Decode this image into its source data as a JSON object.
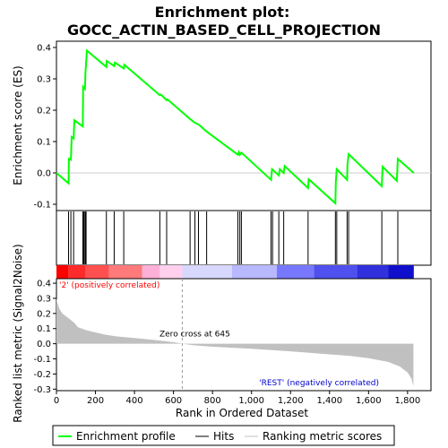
{
  "chart_data": {
    "type": "line",
    "title": "Enrichment plot:\nGOCC_ACTIN_BASED_CELL_PROJECTION",
    "title_lines": [
      "Enrichment plot:",
      "GOCC_ACTIN_BASED_CELL_PROJECTION"
    ],
    "n_genes": 1830,
    "colors": {
      "profile": "#00ff00",
      "hits": "#000000",
      "metric_fill": "#c0c0c0",
      "pos_label": "#ff0000",
      "neg_label": "#0000cc"
    },
    "es_panel": {
      "ylabel": "Enrichment score (ES)",
      "ylim": [
        -0.12,
        0.42
      ],
      "yticks": [
        -0.1,
        0.0,
        0.1,
        0.2,
        0.3,
        0.4
      ],
      "ytick_labels": [
        "-0.1",
        "0.0",
        "0.1",
        "0.2",
        "0.3",
        "0.4"
      ],
      "profile": [
        [
          0,
          0.0
        ],
        [
          62,
          -0.033
        ],
        [
          64,
          0.045
        ],
        [
          74,
          0.042
        ],
        [
          78,
          0.115
        ],
        [
          88,
          0.11
        ],
        [
          92,
          0.168
        ],
        [
          135,
          0.148
        ],
        [
          137,
          0.275
        ],
        [
          146,
          0.268
        ],
        [
          149,
          0.32
        ],
        [
          156,
          0.39
        ],
        [
          256,
          0.338
        ],
        [
          258,
          0.357
        ],
        [
          296,
          0.341
        ],
        [
          300,
          0.352
        ],
        [
          345,
          0.333
        ],
        [
          348,
          0.345
        ],
        [
          530,
          0.248
        ],
        [
          535,
          0.25
        ],
        [
          565,
          0.232
        ],
        [
          568,
          0.235
        ],
        [
          685,
          0.172
        ],
        [
          710,
          0.16
        ],
        [
          728,
          0.155
        ],
        [
          770,
          0.132
        ],
        [
          930,
          0.058
        ],
        [
          935,
          0.066
        ],
        [
          940,
          0.058
        ],
        [
          948,
          0.065
        ],
        [
          1100,
          -0.022
        ],
        [
          1105,
          0.012
        ],
        [
          1140,
          -0.008
        ],
        [
          1145,
          0.012
        ],
        [
          1165,
          0.0
        ],
        [
          1170,
          0.022
        ],
        [
          1290,
          -0.048
        ],
        [
          1293,
          -0.02
        ],
        [
          1430,
          -0.097
        ],
        [
          1432,
          -0.03
        ],
        [
          1437,
          0.012
        ],
        [
          1490,
          -0.022
        ],
        [
          1492,
          0.028
        ],
        [
          1498,
          0.06
        ],
        [
          1668,
          -0.042
        ],
        [
          1672,
          0.02
        ],
        [
          1745,
          -0.025
        ],
        [
          1750,
          0.045
        ],
        [
          1832,
          0.0
        ]
      ]
    },
    "hits": [
      62,
      74,
      88,
      135,
      140,
      146,
      149,
      152,
      256,
      296,
      345,
      530,
      565,
      685,
      710,
      728,
      770,
      930,
      940,
      948,
      1100,
      1108,
      1140,
      1165,
      1290,
      1430,
      1437,
      1490,
      1498,
      1668,
      1750
    ],
    "metric_panel": {
      "ylabel": "Ranked list metric (Signal2Noise)",
      "xlabel": "Rank in Ordered Dataset",
      "ylim": [
        -0.31,
        0.43
      ],
      "yticks": [
        -0.3,
        -0.2,
        -0.1,
        0.0,
        0.1,
        0.2,
        0.3,
        0.4
      ],
      "ytick_labels": [
        "-0.3",
        "-0.2",
        "-0.1",
        "0.0",
        "0.1",
        "0.2",
        "0.3",
        "0.4"
      ],
      "xlim": [
        0,
        1920
      ],
      "xticks": [
        0,
        200,
        400,
        600,
        800,
        1000,
        1200,
        1400,
        1600,
        1800
      ],
      "xtick_labels": [
        "0",
        "200",
        "400",
        "600",
        "800",
        "1,000",
        "1,200",
        "1,400",
        "1,600",
        "1,800"
      ],
      "metric": [
        [
          0,
          0.3
        ],
        [
          5,
          0.27
        ],
        [
          15,
          0.23
        ],
        [
          30,
          0.2
        ],
        [
          60,
          0.17
        ],
        [
          90,
          0.14
        ],
        [
          110,
          0.11
        ],
        [
          150,
          0.09
        ],
        [
          200,
          0.075
        ],
        [
          250,
          0.06
        ],
        [
          300,
          0.05
        ],
        [
          400,
          0.038
        ],
        [
          500,
          0.025
        ],
        [
          600,
          0.01
        ],
        [
          645,
          0.0
        ],
        [
          700,
          -0.01
        ],
        [
          800,
          -0.02
        ],
        [
          1000,
          -0.033
        ],
        [
          1200,
          -0.05
        ],
        [
          1400,
          -0.07
        ],
        [
          1500,
          -0.08
        ],
        [
          1600,
          -0.095
        ],
        [
          1700,
          -0.12
        ],
        [
          1760,
          -0.15
        ],
        [
          1800,
          -0.19
        ],
        [
          1820,
          -0.23
        ],
        [
          1830,
          -0.28
        ]
      ],
      "zero_cross": 645,
      "zero_cross_label": "Zero cross at 645",
      "pos_label": "'2' (positively correlated)",
      "neg_label": "'REST' (negatively correlated)"
    },
    "legend": {
      "placement": "bottom",
      "items": [
        {
          "label": "Enrichment profile",
          "color": "#00ff00"
        },
        {
          "label": "Hits",
          "color": "#000000"
        },
        {
          "label": "Ranking metric scores",
          "color": "#c0c0c0"
        }
      ]
    },
    "heatmap_bands": [
      {
        "start": 0,
        "end": 60,
        "color": "#ff0000"
      },
      {
        "start": 60,
        "end": 150,
        "color": "#ff2a2a"
      },
      {
        "start": 150,
        "end": 270,
        "color": "#ff5050"
      },
      {
        "start": 270,
        "end": 440,
        "color": "#ff7a7a"
      },
      {
        "start": 440,
        "end": 530,
        "color": "#ffb0d8"
      },
      {
        "start": 530,
        "end": 645,
        "color": "#ffd0ee"
      },
      {
        "start": 645,
        "end": 900,
        "color": "#d8d8ff"
      },
      {
        "start": 900,
        "end": 1130,
        "color": "#b8b8ff"
      },
      {
        "start": 1130,
        "end": 1320,
        "color": "#7878ff"
      },
      {
        "start": 1320,
        "end": 1540,
        "color": "#5050ee"
      },
      {
        "start": 1540,
        "end": 1700,
        "color": "#3030dd"
      },
      {
        "start": 1700,
        "end": 1832,
        "color": "#1010cc"
      }
    ]
  }
}
